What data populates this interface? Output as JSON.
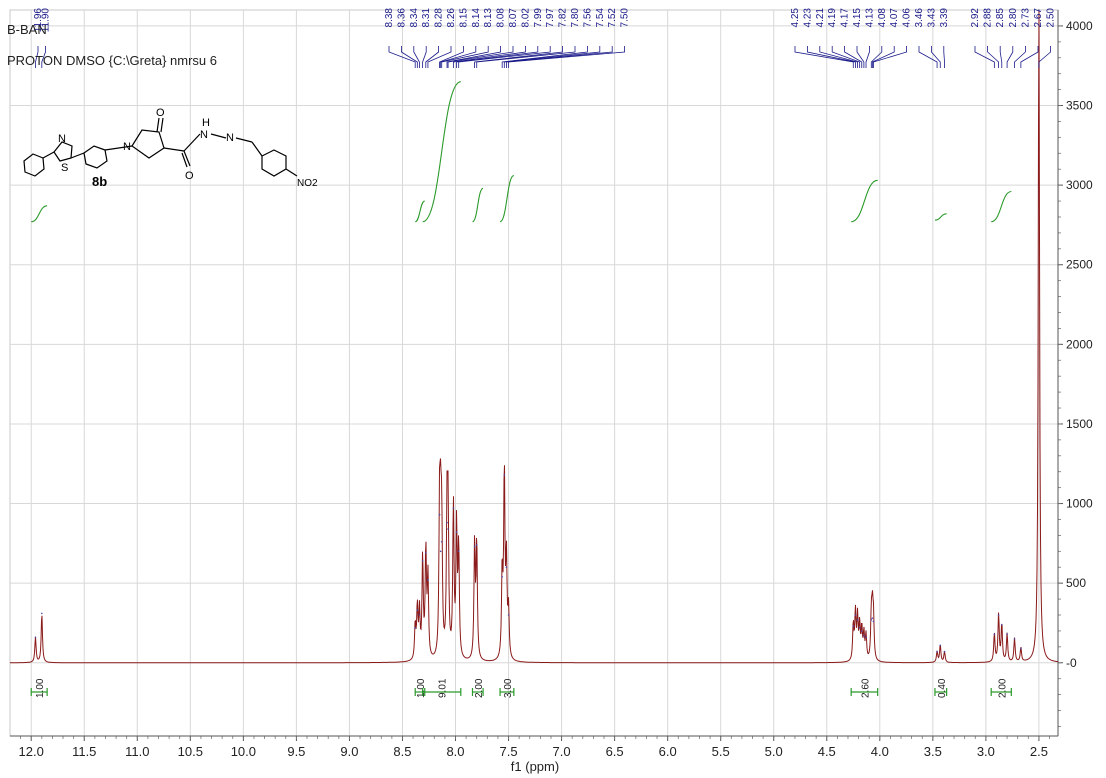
{
  "header": {
    "sample_id": "B-BAN",
    "experiment": "PROTON DMSO {C:\\Greta} nmrsu 6"
  },
  "structure": {
    "compound_label": "8b",
    "atom_labels": [
      "N",
      "S",
      "N",
      "O",
      "N",
      "H",
      "N",
      "O",
      "NO2"
    ]
  },
  "chart_data": {
    "type": "line",
    "title": "",
    "xlabel": "f1 (ppm)",
    "ylabel": "",
    "xlim": [
      12.2,
      2.32
    ],
    "ylim": [
      -460,
      4100
    ],
    "x_axis_reversed": true,
    "grid": true,
    "x_ticks": [
      "12.0",
      "11.5",
      "11.0",
      "10.5",
      "10.0",
      "9.5",
      "9.0",
      "8.5",
      "8.0",
      "7.5",
      "7.0",
      "6.5",
      "6.0",
      "5.5",
      "5.0",
      "4.5",
      "4.0",
      "3.5",
      "3.0",
      "2.5"
    ],
    "y_ticks": [
      "-0",
      "500",
      "1000",
      "1500",
      "2000",
      "2500",
      "3000",
      "3500",
      "4000"
    ],
    "series": [
      {
        "color": "#8b1a1a",
        "peaks": [
          {
            "x": 11.96,
            "y": 160
          },
          {
            "x": 11.9,
            "y": 310
          },
          {
            "x": 8.38,
            "y": 220
          },
          {
            "x": 8.36,
            "y": 330
          },
          {
            "x": 8.34,
            "y": 300
          },
          {
            "x": 8.31,
            "y": 640
          },
          {
            "x": 8.28,
            "y": 690
          },
          {
            "x": 8.26,
            "y": 520
          },
          {
            "x": 8.15,
            "y": 930
          },
          {
            "x": 8.14,
            "y": 700
          },
          {
            "x": 8.13,
            "y": 760
          },
          {
            "x": 8.08,
            "y": 880
          },
          {
            "x": 8.07,
            "y": 840
          },
          {
            "x": 8.02,
            "y": 970
          },
          {
            "x": 7.99,
            "y": 820
          },
          {
            "x": 7.97,
            "y": 700
          },
          {
            "x": 7.82,
            "y": 730
          },
          {
            "x": 7.8,
            "y": 740
          },
          {
            "x": 7.56,
            "y": 540
          },
          {
            "x": 7.54,
            "y": 1180
          },
          {
            "x": 7.52,
            "y": 600
          },
          {
            "x": 7.5,
            "y": 300
          },
          {
            "x": 4.25,
            "y": 230
          },
          {
            "x": 4.23,
            "y": 300
          },
          {
            "x": 4.21,
            "y": 270
          },
          {
            "x": 4.19,
            "y": 220
          },
          {
            "x": 4.17,
            "y": 200
          },
          {
            "x": 4.15,
            "y": 170
          },
          {
            "x": 4.13,
            "y": 160
          },
          {
            "x": 4.08,
            "y": 270
          },
          {
            "x": 4.07,
            "y": 280
          },
          {
            "x": 4.06,
            "y": 260
          },
          {
            "x": 3.46,
            "y": 70
          },
          {
            "x": 3.43,
            "y": 110
          },
          {
            "x": 3.39,
            "y": 70
          },
          {
            "x": 2.92,
            "y": 180
          },
          {
            "x": 2.88,
            "y": 300
          },
          {
            "x": 2.85,
            "y": 240
          },
          {
            "x": 2.8,
            "y": 180
          },
          {
            "x": 2.73,
            "y": 150
          },
          {
            "x": 2.67,
            "y": 90
          },
          {
            "x": 2.5,
            "y": 4400
          }
        ]
      }
    ],
    "peak_labels": [
      {
        "group": 1,
        "values": [
          "11.96",
          "11.90"
        ]
      },
      {
        "group": 2,
        "values": [
          "8.38",
          "8.36",
          "8.34",
          "8.31",
          "8.28",
          "8.26",
          "8.15",
          "8.14",
          "8.13",
          "8.08",
          "8.07",
          "8.02",
          "7.99",
          "7.97",
          "7.82",
          "7.80",
          "7.56",
          "7.54",
          "7.52",
          "7.50"
        ]
      },
      {
        "group": 3,
        "values": [
          "4.25",
          "4.23",
          "4.21",
          "4.19",
          "4.17",
          "4.15",
          "4.13",
          "4.08",
          "4.07",
          "4.06",
          "3.46",
          "3.43",
          "3.39"
        ]
      },
      {
        "group": 4,
        "values": [
          "2.92",
          "2.88",
          "2.85",
          "2.80",
          "2.73",
          "2.67",
          "2.50"
        ]
      }
    ],
    "integrals": [
      {
        "from": 12.0,
        "to": 11.85,
        "value": "1.00",
        "curve": [
          2770,
          2870
        ]
      },
      {
        "from": 8.38,
        "to": 8.29,
        "value": "1.00",
        "curve": [
          2770,
          2900
        ]
      },
      {
        "from": 8.31,
        "to": 7.95,
        "value": "9.01",
        "curve": [
          2770,
          3650
        ]
      },
      {
        "from": 7.84,
        "to": 7.74,
        "value": "2.00",
        "curve": [
          2770,
          2980
        ]
      },
      {
        "from": 7.58,
        "to": 7.45,
        "value": "3.00",
        "curve": [
          2770,
          3060
        ]
      },
      {
        "from": 4.27,
        "to": 4.02,
        "value": "2.60",
        "curve": [
          2770,
          3030
        ]
      },
      {
        "from": 3.48,
        "to": 3.37,
        "value": "0.40",
        "curve": [
          2780,
          2820
        ]
      },
      {
        "from": 2.95,
        "to": 2.76,
        "value": "2.00",
        "curve": [
          2770,
          2960
        ]
      }
    ]
  }
}
